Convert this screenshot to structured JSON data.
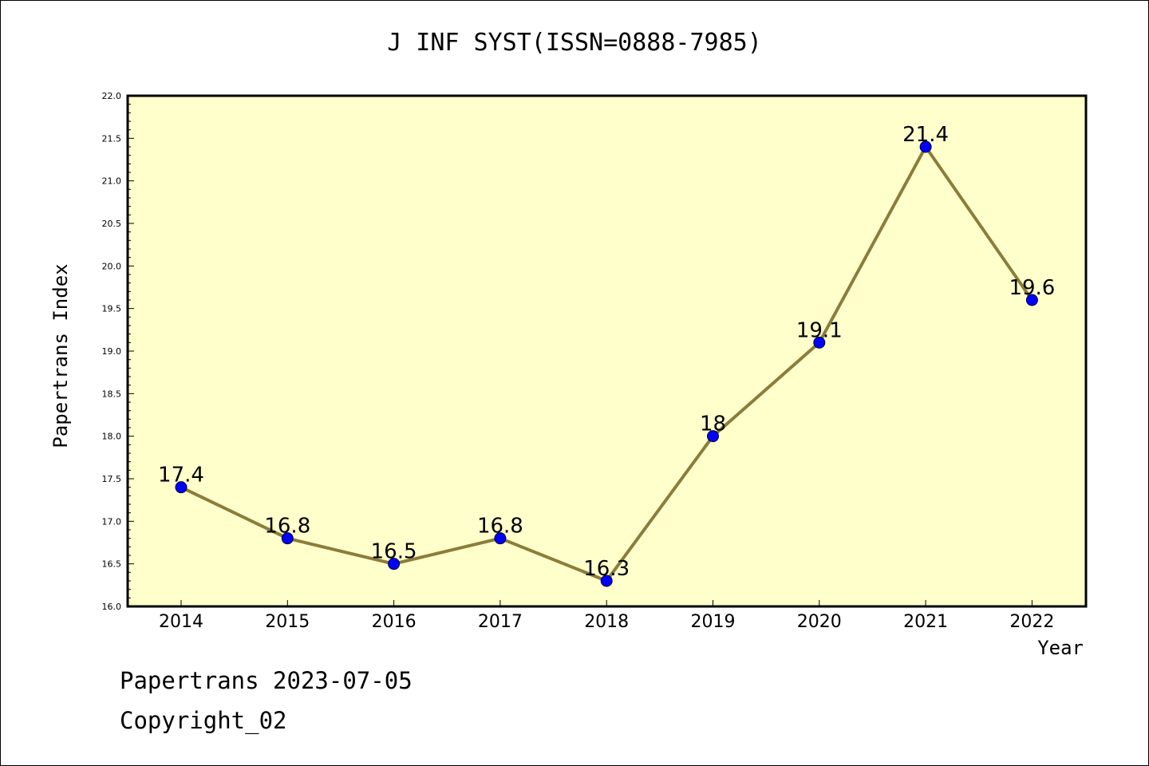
{
  "title": "J INF SYST(ISSN=0888-7985)",
  "footer": {
    "line1": "Papertrans 2023-07-05",
    "line2": "Copyright_02"
  },
  "colors": {
    "plot_background": "#ffffcc",
    "line": "#8b7d3a",
    "marker": "#0000ff"
  },
  "chart_data": {
    "type": "line",
    "title": "J INF SYST(ISSN=0888-7985)",
    "xlabel": "Year",
    "ylabel": "Papertrans Index",
    "categories": [
      "2014",
      "2015",
      "2016",
      "2017",
      "2018",
      "2019",
      "2020",
      "2021",
      "2022"
    ],
    "series": [
      {
        "values": [
          17.4,
          16.8,
          16.5,
          16.8,
          16.3,
          18.0,
          19.1,
          21.4,
          19.6
        ],
        "labels": [
          "17.4",
          "16.8",
          "16.5",
          "16.8",
          "16.3",
          "18",
          "19.1",
          "21.4",
          "19.6"
        ]
      }
    ],
    "ylim": [
      16.0,
      22.0
    ],
    "yticks": [
      "16.0",
      "16.5",
      "17.0",
      "17.5",
      "18.0",
      "18.5",
      "19.0",
      "19.5",
      "20.0",
      "20.5",
      "21.0",
      "21.5",
      "22.0"
    ],
    "grid": false,
    "legend": "none"
  }
}
